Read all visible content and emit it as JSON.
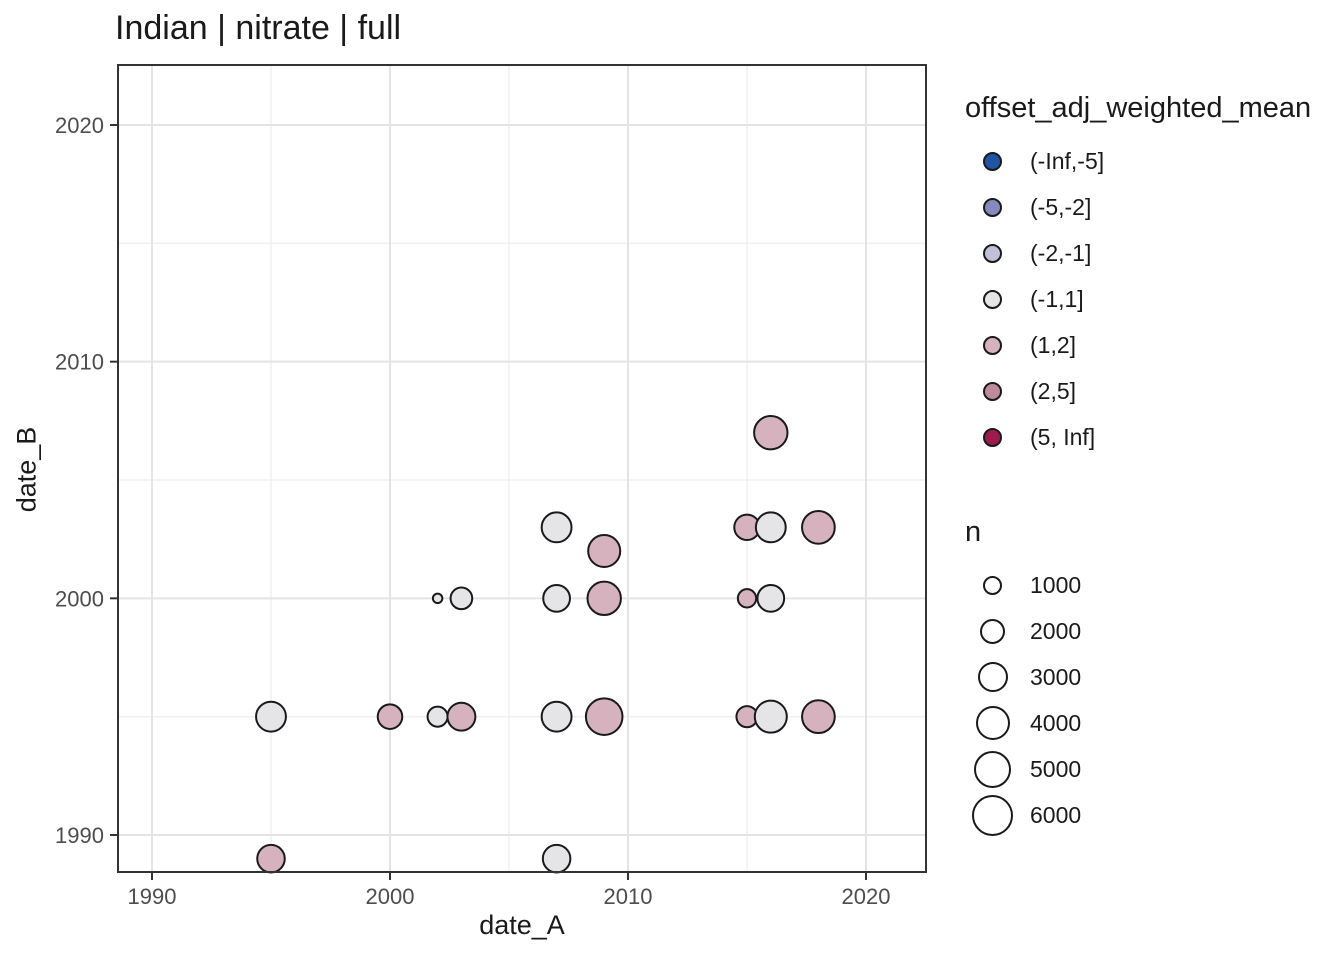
{
  "title": "Indian | nitrate | full",
  "axes": {
    "x": {
      "label": "date_A",
      "ticks": [
        "1990",
        "2000",
        "2010",
        "2020"
      ]
    },
    "y": {
      "label": "date_B",
      "ticks": [
        "1990",
        "2000",
        "2010",
        "2020"
      ]
    }
  },
  "legends": {
    "color": {
      "title": "offset_adj_weighted_mean",
      "items": [
        {
          "label": "(-Inf,-5]",
          "color": "#2155a3"
        },
        {
          "label": "(-5,-2]",
          "color": "#8589bd"
        },
        {
          "label": "(-2,-1]",
          "color": "#c0c1d8"
        },
        {
          "label": "(-1,1]",
          "color": "#e5e4e6"
        },
        {
          "label": "(1,2]",
          "color": "#d5b2be"
        },
        {
          "label": "(2,5]",
          "color": "#bf8b9b"
        },
        {
          "label": "(5, Inf]",
          "color": "#9e1b4e"
        }
      ]
    },
    "size": {
      "title": "n",
      "items": [
        {
          "label": "1000",
          "n": 1000
        },
        {
          "label": "2000",
          "n": 2000
        },
        {
          "label": "3000",
          "n": 3000
        },
        {
          "label": "4000",
          "n": 4000
        },
        {
          "label": "5000",
          "n": 5000
        },
        {
          "label": "6000",
          "n": 6000
        }
      ]
    }
  },
  "chart_data": {
    "type": "scatter",
    "title": "Indian | nitrate | full",
    "xlabel": "date_A",
    "ylabel": "date_B",
    "xlim": [
      1988.6,
      2022.5
    ],
    "ylim": [
      1988.4,
      2022.5
    ],
    "x_ticks": [
      1990,
      2000,
      2010,
      2020
    ],
    "y_ticks": [
      1990,
      2000,
      2010,
      2020
    ],
    "x_minor_ticks": [
      1995,
      2005,
      2015
    ],
    "y_minor_ticks": [
      1995,
      2005,
      2015
    ],
    "grid": "major-and-minor",
    "legend_position": "right",
    "color_variable": "offset_adj_weighted_mean",
    "size_variable": "n",
    "points": [
      {
        "date_A": 1995,
        "date_B": 1989,
        "n": 3400,
        "bin": "(1,2]"
      },
      {
        "date_A": 2007,
        "date_B": 1989,
        "n": 3400,
        "bin": "(-1,1]"
      },
      {
        "date_A": 1995,
        "date_B": 1995,
        "n": 4000,
        "bin": "(-1,1]"
      },
      {
        "date_A": 2000,
        "date_B": 1995,
        "n": 2700,
        "bin": "(1,2]"
      },
      {
        "date_A": 2002,
        "date_B": 1995,
        "n": 1800,
        "bin": "(-1,1]"
      },
      {
        "date_A": 2003,
        "date_B": 1995,
        "n": 3500,
        "bin": "(1,2]"
      },
      {
        "date_A": 2007,
        "date_B": 1995,
        "n": 4000,
        "bin": "(-1,1]"
      },
      {
        "date_A": 2009,
        "date_B": 1995,
        "n": 6000,
        "bin": "(1,2]"
      },
      {
        "date_A": 2015,
        "date_B": 1995,
        "n": 2000,
        "bin": "(1,2]"
      },
      {
        "date_A": 2016,
        "date_B": 1995,
        "n": 4600,
        "bin": "(-1,1]"
      },
      {
        "date_A": 2018,
        "date_B": 1995,
        "n": 4800,
        "bin": "(1,2]"
      },
      {
        "date_A": 2002,
        "date_B": 2000,
        "n": 400,
        "bin": "(-1,1]"
      },
      {
        "date_A": 2003,
        "date_B": 2000,
        "n": 2100,
        "bin": "(-1,1]"
      },
      {
        "date_A": 2007,
        "date_B": 2000,
        "n": 3200,
        "bin": "(-1,1]"
      },
      {
        "date_A": 2009,
        "date_B": 2000,
        "n": 5000,
        "bin": "(1,2]"
      },
      {
        "date_A": 2015,
        "date_B": 2000,
        "n": 1500,
        "bin": "(1,2]"
      },
      {
        "date_A": 2016,
        "date_B": 2000,
        "n": 3200,
        "bin": "(-1,1]"
      },
      {
        "date_A": 2007,
        "date_B": 2003,
        "n": 4000,
        "bin": "(-1,1]"
      },
      {
        "date_A": 2009,
        "date_B": 2002,
        "n": 4600,
        "bin": "(1,2]"
      },
      {
        "date_A": 2015,
        "date_B": 2003,
        "n": 2900,
        "bin": "(1,2]"
      },
      {
        "date_A": 2016,
        "date_B": 2003,
        "n": 4000,
        "bin": "(-1,1]"
      },
      {
        "date_A": 2018,
        "date_B": 2003,
        "n": 4800,
        "bin": "(1,2]"
      },
      {
        "date_A": 2016,
        "date_B": 2007,
        "n": 5000,
        "bin": "(1,2]"
      }
    ]
  },
  "colors": {
    "background": "#ffffff",
    "panel_border": "#333333",
    "grid_major": "#e4e4e4",
    "grid_minor": "#f1f1f1",
    "tick_mark": "#333333",
    "tick_label": "#4d4d4d",
    "point_stroke": "#1a1a1a",
    "text": "#1a1a1a"
  }
}
